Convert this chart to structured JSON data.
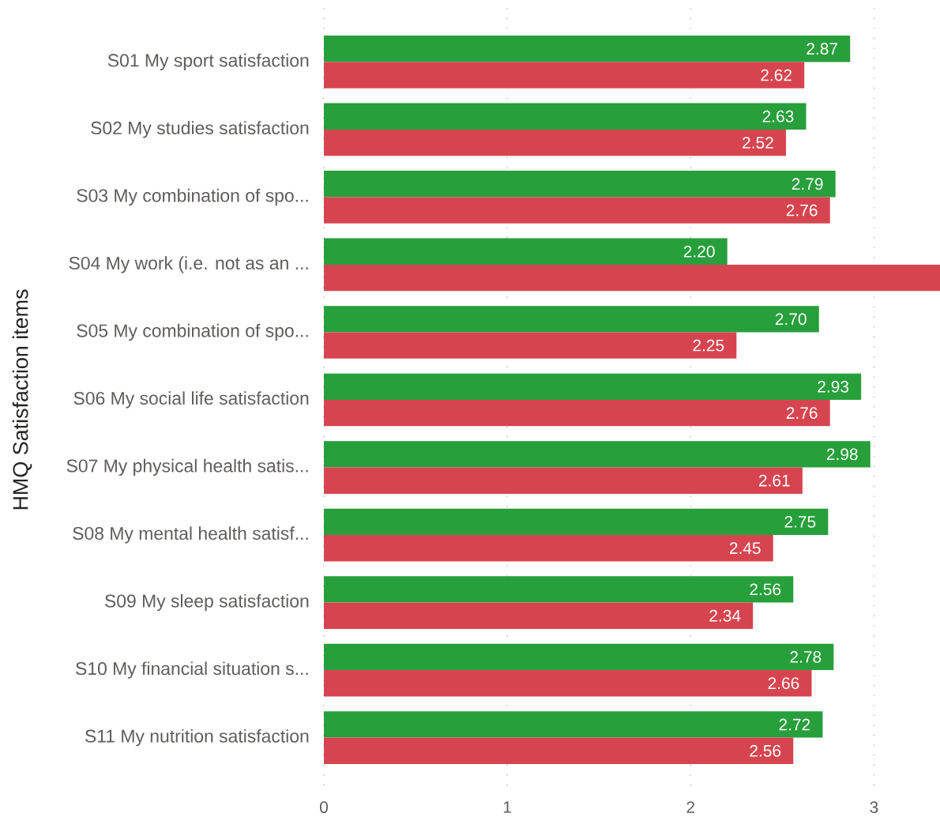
{
  "chart_data": {
    "type": "bar",
    "orientation": "horizontal",
    "ylabel": "HMQ Satisfaction items",
    "categories": [
      "S01 My sport satisfaction",
      "S02 My studies satisfaction",
      "S03 My combination of spo...",
      "S04 My work (i.e. not as an ...",
      "S05 My combination of spo...",
      "S06 My social life satisfaction",
      "S07 My physical health satis...",
      "S08 My mental health satisf...",
      "S09 My sleep satisfaction",
      "S10 My financial situation s...",
      "S11 My nutrition satisfaction"
    ],
    "series": [
      {
        "color": "#279f3b",
        "values": [
          2.87,
          2.63,
          2.79,
          2.2,
          2.7,
          2.93,
          2.98,
          2.75,
          2.56,
          2.78,
          2.72
        ],
        "value_labels": [
          "2.87",
          "2.63",
          "2.79",
          "2.20",
          "2.70",
          "2.93",
          "2.98",
          "2.75",
          "2.56",
          "2.78",
          "2.72"
        ]
      },
      {
        "color": "#d6454f",
        "values": [
          2.62,
          2.52,
          2.76,
          3.36,
          2.25,
          2.76,
          2.61,
          2.45,
          2.34,
          2.66,
          2.56
        ],
        "value_labels": [
          "2.62",
          "2.52",
          "2.76",
          null,
          "2.25",
          "2.76",
          "2.61",
          "2.45",
          "2.34",
          "2.66",
          "2.56"
        ]
      }
    ],
    "xlim": [
      0,
      3.36
    ],
    "xticks": [
      0,
      1,
      2,
      3
    ],
    "grid": "x"
  }
}
